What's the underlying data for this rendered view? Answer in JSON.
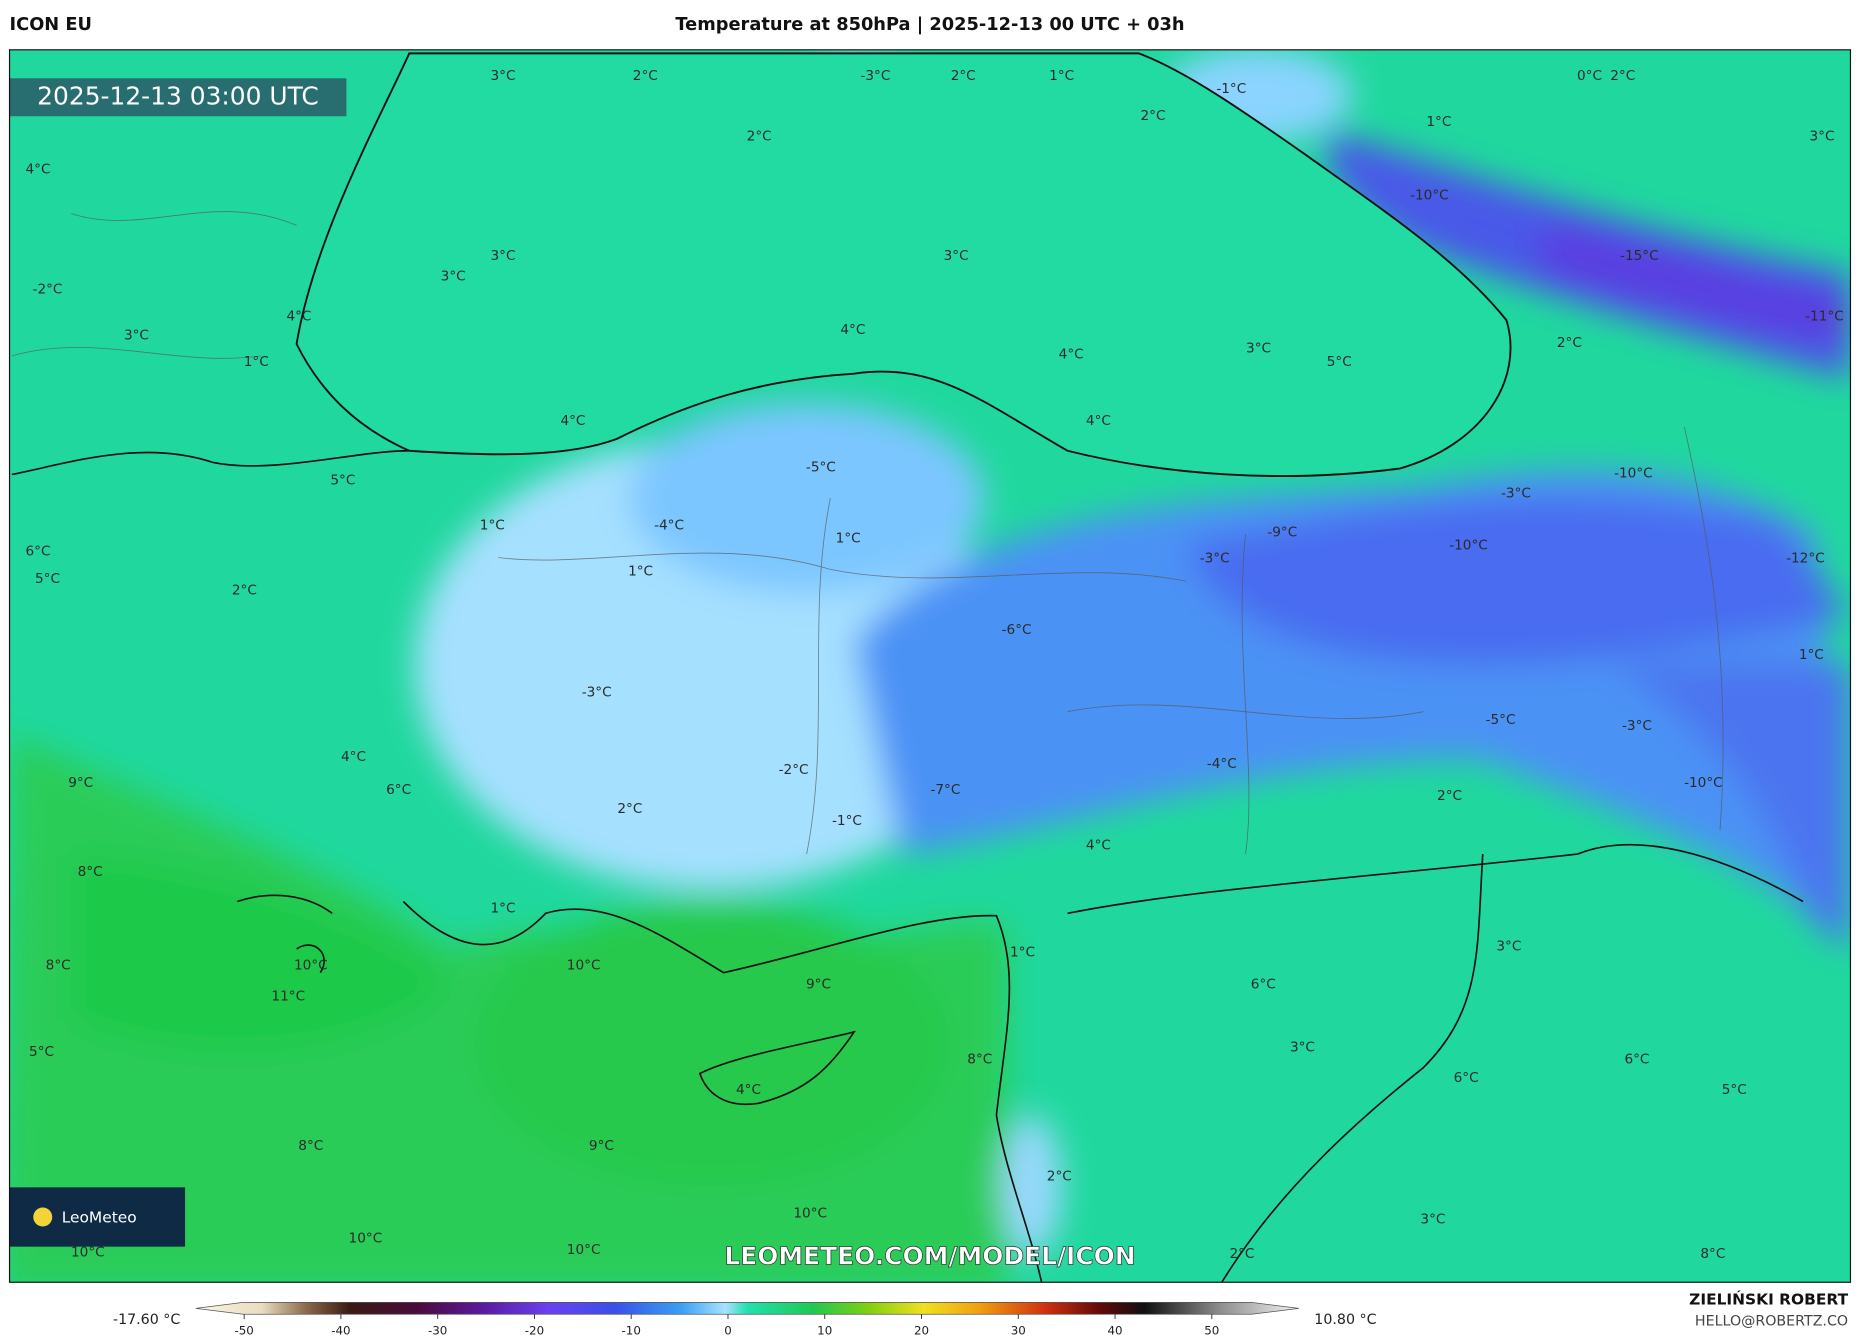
{
  "header": {
    "model": "ICON EU",
    "title": "Temperature at 850hPa | 2025-12-13 00 UTC + 03h"
  },
  "map": {
    "timestamp": "2025-12-13 03:00 UTC",
    "watermark": "LEOMETEO.COM/MODEL/ICON",
    "logo": "LeoMeteo",
    "labels": [
      "3°C",
      "2°C",
      "-3°C",
      "2°C",
      "1°C",
      "-1°C",
      "0°C",
      "2°C",
      "2°C",
      "2°C",
      "1°C",
      "3°C",
      "4°C",
      "-10°C",
      "3°C",
      "3°C",
      "-15°C",
      "3°C",
      "-2°C",
      "4°C",
      "-11°C",
      "4°C",
      "3°C",
      "4°C",
      "3°C",
      "5°C",
      "2°C",
      "1°C",
      "4°C",
      "4°C",
      "-5°C",
      "-10°C",
      "5°C",
      "-3°C",
      "1°C",
      "-4°C",
      "-9°C",
      "1°C",
      "-10°C",
      "6°C",
      "-3°C",
      "-12°C",
      "1°C",
      "5°C",
      "2°C",
      "-6°C",
      "1°C",
      "-3°C",
      "-5°C",
      "-3°C",
      "4°C",
      "-4°C",
      "-2°C",
      "9°C",
      "6°C",
      "-7°C",
      "-10°C",
      "2°C",
      "2°C",
      "-1°C",
      "4°C",
      "8°C",
      "1°C",
      "3°C",
      "1°C",
      "8°C",
      "10°C",
      "10°C",
      "9°C",
      "11°C",
      "6°C",
      "3°C",
      "5°C",
      "8°C",
      "6°C",
      "4°C",
      "6°C",
      "5°C",
      "8°C",
      "9°C",
      "2°C",
      "10°C",
      "3°C",
      "10°C",
      "10°C",
      "10°C",
      "2°C",
      "8°C"
    ]
  },
  "colorbar": {
    "min_label": "-17.60 °C",
    "max_label": "10.80 °C",
    "lim": [
      -55,
      59
    ],
    "ticks": [
      -50,
      -40,
      -30,
      -20,
      -10,
      0,
      10,
      20,
      30,
      40,
      50
    ]
  },
  "credit": {
    "author": "ZIELIŃSKI ROBERT",
    "email": "HELLO@ROBERTZ.CO"
  }
}
